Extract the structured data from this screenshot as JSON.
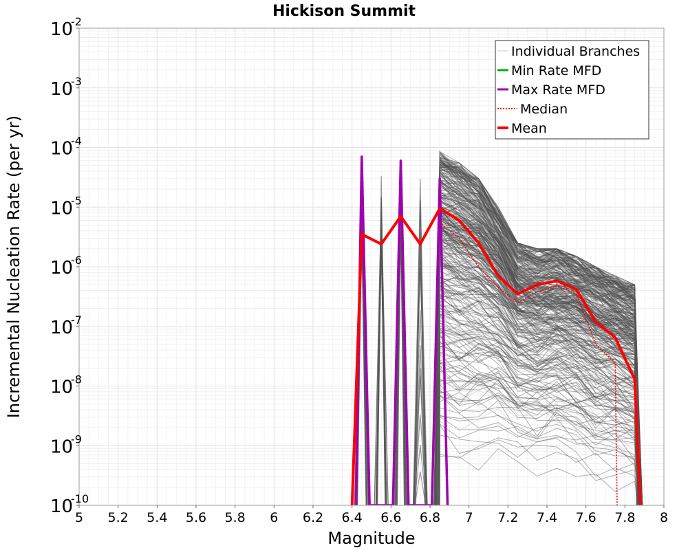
{
  "chart_data": {
    "type": "line",
    "title": "Hickison Summit",
    "xlabel": "Magnitude",
    "ylabel": "Incremental Nucleation Rate (per yr)",
    "xlim": [
      5,
      8
    ],
    "ylim": [
      1e-10,
      0.01
    ],
    "yscale": "log",
    "grid": true,
    "legend_position": "top-right",
    "x_ticks": [
      "5",
      "5.2",
      "5.4",
      "5.6",
      "5.8",
      "6",
      "6.2",
      "6.4",
      "6.6",
      "6.8",
      "7",
      "7.2",
      "7.4",
      "7.6",
      "7.8",
      "8"
    ],
    "y_tick_base": "10",
    "y_tick_exponents": [
      "-10",
      "-9",
      "-8",
      "-7",
      "-6",
      "-5",
      "-4",
      "-3",
      "-2"
    ],
    "legend": [
      {
        "label": "Individual Branches",
        "color": "#c8c8c8",
        "style": "thin"
      },
      {
        "label": "Min Rate MFD",
        "color": "#00b000",
        "style": "solid"
      },
      {
        "label": "Max Rate MFD",
        "color": "#a000b0",
        "style": "solid"
      },
      {
        "label": "Median",
        "color": "#ff0000",
        "style": "dotted"
      },
      {
        "label": "Mean",
        "color": "#ff0000",
        "style": "thick"
      }
    ],
    "series": [
      {
        "name": "Mean",
        "color": "#ff0000",
        "x": [
          6.4,
          6.45,
          6.55,
          6.65,
          6.75,
          6.85,
          6.95,
          7.05,
          7.15,
          7.25,
          7.35,
          7.45,
          7.55,
          7.65,
          7.75,
          7.85,
          7.88
        ],
        "y": [
          1e-10,
          3.5e-06,
          2.4e-06,
          7e-06,
          2.4e-06,
          9.5e-06,
          6e-06,
          2.5e-06,
          7e-07,
          3.5e-07,
          5e-07,
          5.8e-07,
          4.2e-07,
          1.2e-07,
          6.5e-08,
          1.3e-08,
          1e-10
        ]
      },
      {
        "name": "Median",
        "color": "#ff0000",
        "x": [
          6.85,
          6.95,
          7.05,
          7.15,
          7.25,
          7.35,
          7.45,
          7.55,
          7.65,
          7.75,
          7.76
        ],
        "y": [
          5.5e-06,
          3e-06,
          1e-06,
          4.5e-07,
          2.5e-07,
          3.8e-07,
          4.8e-07,
          3.5e-07,
          5e-08,
          2.5e-08,
          1e-10
        ]
      },
      {
        "name": "Max Rate MFD",
        "color": "#a000b0",
        "x": [
          6.42,
          6.45,
          6.49,
          6.61,
          6.65,
          6.69,
          6.81,
          6.85,
          6.89
        ],
        "y": [
          1e-10,
          7e-05,
          1e-10,
          1e-10,
          6e-05,
          1e-10,
          1e-10,
          3e-05,
          1e-10
        ]
      },
      {
        "name": "Individual Branches",
        "color": "#505050",
        "x": [
          6.45,
          6.55,
          6.65,
          6.75,
          6.85,
          6.95,
          7.05,
          7.15,
          7.25,
          7.35,
          7.45,
          7.55,
          7.65,
          7.75,
          7.85
        ],
        "y": [
          7e-05,
          6e-05,
          6e-05,
          3.5e-05,
          8.5e-05,
          5.5e-05,
          3e-05,
          1e-05,
          2.5e-06,
          2e-06,
          2e-06,
          1.5e-06,
          1e-06,
          7e-07,
          5e-07
        ]
      }
    ]
  }
}
